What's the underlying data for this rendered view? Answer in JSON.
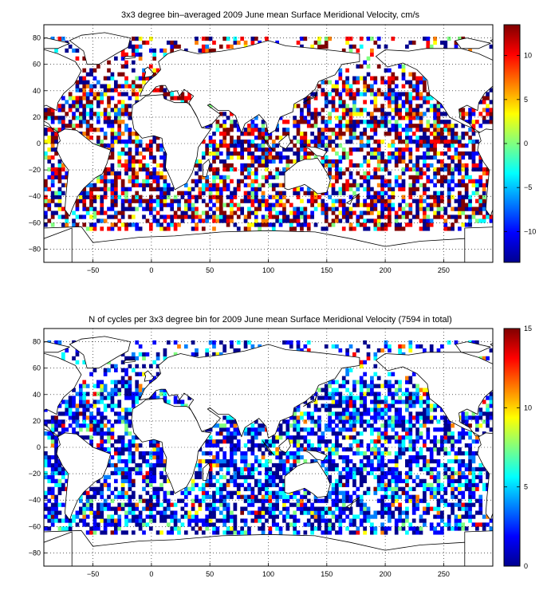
{
  "colormap": [
    "#00008f",
    "#0000ff",
    "#0080ff",
    "#00ffff",
    "#80ff80",
    "#ffff00",
    "#ff8000",
    "#ff0000",
    "#800000"
  ],
  "land_color": "#ffffff",
  "chart_data": [
    {
      "type": "heatmap",
      "title": "3x3 degree bin–averaged 2009 June mean Surface Meridional Velocity, cm/s",
      "xlim": [
        -92,
        292
      ],
      "ylim": [
        -90,
        90
      ],
      "x_ticks": [
        -50,
        0,
        50,
        100,
        150,
        200,
        250
      ],
      "y_ticks": [
        80,
        60,
        40,
        20,
        0,
        -20,
        -40,
        -60,
        -80
      ],
      "grid": "dotted",
      "bin_size_deg": 3,
      "colorbar": {
        "min": -13.5,
        "max": 13.5,
        "ticks": [
          10,
          5,
          0,
          -5,
          -10
        ],
        "placement": "right"
      },
      "value_range_shown": [
        -13.5,
        13.5
      ]
    },
    {
      "type": "heatmap",
      "title": "N of cycles per 3x3 degree bin for 2009 June mean Surface Meridional Velocity (7594 in total)",
      "xlim": [
        -92,
        292
      ],
      "ylim": [
        -90,
        90
      ],
      "x_ticks": [
        -50,
        0,
        50,
        100,
        150,
        200,
        250
      ],
      "y_ticks": [
        80,
        60,
        40,
        20,
        0,
        -20,
        -40,
        -60,
        -80
      ],
      "grid": "dotted",
      "bin_size_deg": 3,
      "colorbar": {
        "min": 0,
        "max": 15,
        "ticks": [
          15,
          10,
          5,
          0
        ],
        "placement": "right"
      },
      "total_cycles": 7594
    }
  ]
}
